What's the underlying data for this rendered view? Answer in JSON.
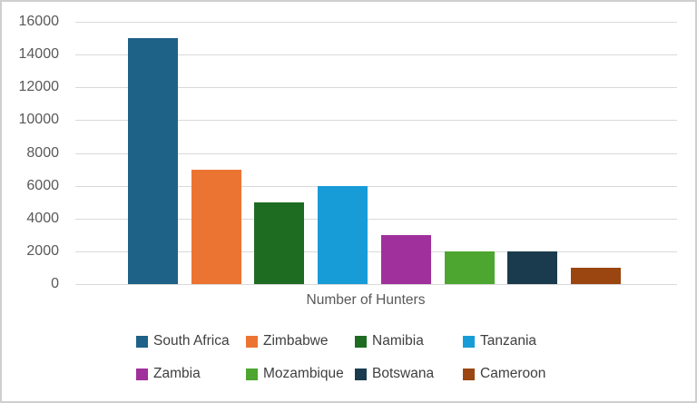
{
  "chart_data": {
    "type": "bar",
    "title": "",
    "xlabel": "Number of Hunters",
    "ylabel": "",
    "categories": [
      "South Africa",
      "Zimbabwe",
      "Namibia",
      "Tanzania",
      "Zambia",
      "Mozambique",
      "Botswana",
      "Cameroon"
    ],
    "values": [
      15000,
      7000,
      5000,
      6000,
      3000,
      2000,
      2000,
      1000
    ],
    "colors": [
      "#1E6287",
      "#EC7433",
      "#1E6B22",
      "#189CD8",
      "#A0309B",
      "#4DA62F",
      "#1A3B4D",
      "#9B4511"
    ],
    "ylim": [
      0,
      16000
    ],
    "ytick_step": 2000,
    "yticks": [
      0,
      2000,
      4000,
      6000,
      8000,
      10000,
      12000,
      14000,
      16000
    ],
    "grid": true,
    "legend_position": "bottom",
    "legend_rows": [
      [
        "South Africa",
        "Zimbabwe",
        "Namibia",
        "Tanzania"
      ],
      [
        "Zambia",
        "Mozambique",
        "Botswana",
        "Cameroon"
      ]
    ]
  },
  "style": {
    "axis_text_color": "#595959",
    "legend_text_color": "#3F3F3F",
    "gridline_color": "#D9D9D9",
    "border_color": "#CFCFCF",
    "background": "#FFFFFF"
  }
}
